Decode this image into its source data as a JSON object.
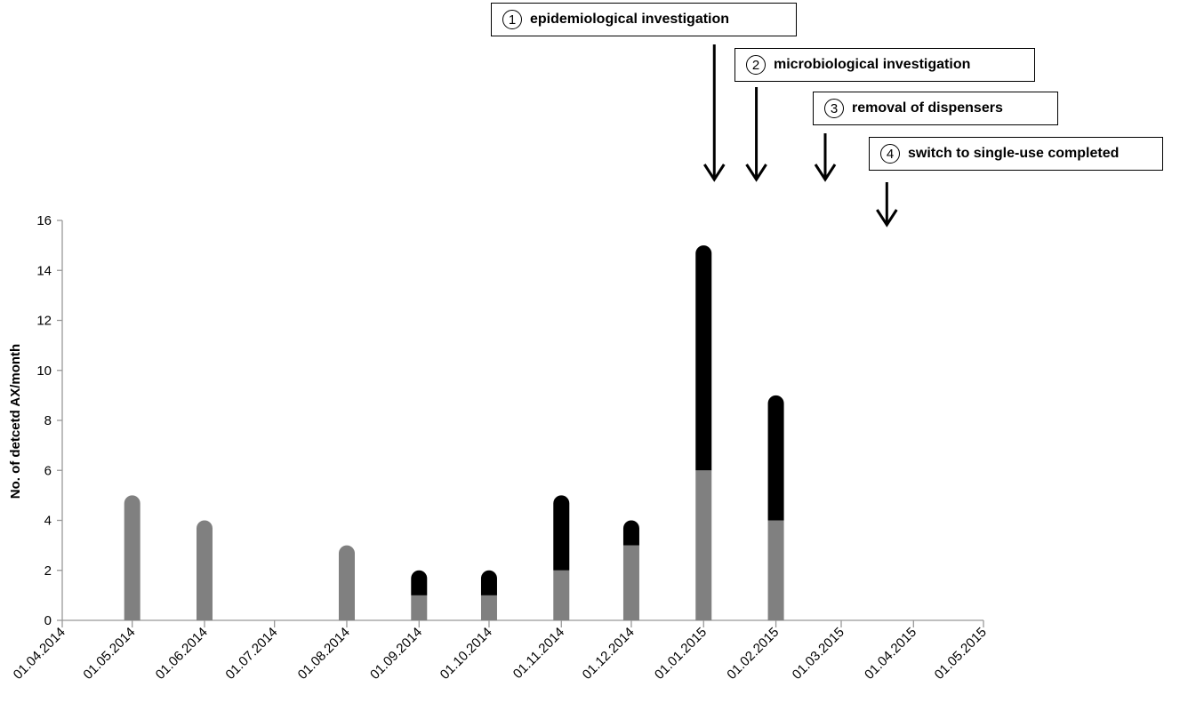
{
  "chart_data": {
    "type": "bar",
    "stacked": true,
    "title": "",
    "xlabel": "",
    "ylabel": "No. of detcetd AX/month",
    "ylim": [
      0,
      16
    ],
    "yticks": [
      0,
      2,
      4,
      6,
      8,
      10,
      12,
      14,
      16
    ],
    "xlim": [
      "01.04.2014",
      "01.05.2015"
    ],
    "xticks": [
      "01.04.2014",
      "01.05.2014",
      "01.06.2014",
      "01.07.2014",
      "01.08.2014",
      "01.09.2014",
      "01.10.2014",
      "01.11.2014",
      "01.12.2014",
      "01.01.2015",
      "01.02.2015",
      "01.03.2015",
      "01.04.2015",
      "01.05.2015"
    ],
    "grid": false,
    "legend": "none",
    "x": [
      "01.05.2014",
      "01.06.2014",
      "01.08.2014",
      "01.09.2014",
      "01.10.2014",
      "01.11.2014",
      "01.12.2014",
      "01.01.2015",
      "01.02.2015"
    ],
    "series": [
      {
        "values": [
          5,
          4,
          3,
          1,
          1,
          2,
          3,
          6,
          4
        ],
        "color": "#808080"
      },
      {
        "values": [
          0,
          0,
          0,
          1,
          1,
          3,
          1,
          9,
          5
        ],
        "color": "#000000"
      }
    ],
    "annotations": [
      {
        "num": "①",
        "text": "epidemiological investigation",
        "x": "01.01.2015"
      },
      {
        "num": "②",
        "text": "microbiological  investigation",
        "x": "01.02.2015"
      },
      {
        "num": "③",
        "text": "removal of dispensers",
        "x": "01.03.2015"
      },
      {
        "num": "④",
        "text": "switch to single-use  completed",
        "x": "01.04.2015"
      }
    ]
  }
}
